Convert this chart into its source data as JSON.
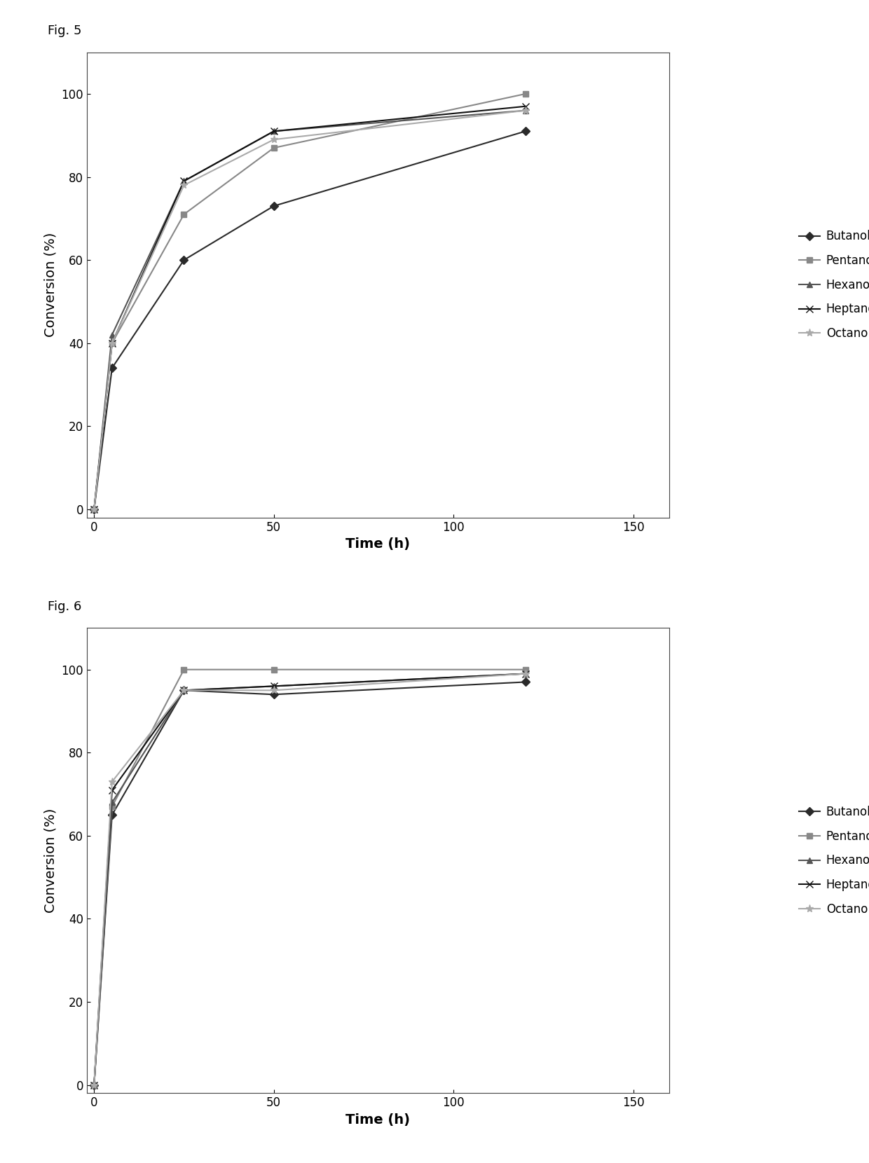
{
  "fig5_label": "Fig. 5",
  "fig6_label": "Fig. 6",
  "xlabel": "Time (h)",
  "ylabel": "Conversion (%)",
  "xlim": [
    -2,
    160
  ],
  "ylim": [
    -2,
    110
  ],
  "xticks": [
    0,
    50,
    100,
    150
  ],
  "yticks": [
    0,
    20,
    40,
    60,
    80,
    100
  ],
  "time_points": [
    0,
    5,
    25,
    50,
    120
  ],
  "series": [
    {
      "label": "Butanol",
      "marker": "D",
      "color": "#2a2a2a",
      "markersize": 6,
      "fig5_values": [
        0,
        34,
        60,
        73,
        91
      ],
      "fig6_values": [
        0,
        65,
        95,
        94,
        97
      ]
    },
    {
      "label": "Pentanol",
      "marker": "s",
      "color": "#888888",
      "markersize": 6,
      "fig5_values": [
        0,
        40,
        71,
        87,
        100
      ],
      "fig6_values": [
        0,
        67,
        100,
        100,
        100
      ]
    },
    {
      "label": "Hexanol",
      "marker": "^",
      "color": "#555555",
      "markersize": 6,
      "fig5_values": [
        0,
        42,
        79,
        91,
        96
      ],
      "fig6_values": [
        0,
        68,
        95,
        96,
        99
      ]
    },
    {
      "label": "Heptanol",
      "marker": "x",
      "color": "#111111",
      "markersize": 7,
      "fig5_values": [
        0,
        40,
        79,
        91,
        97
      ],
      "fig6_values": [
        0,
        71,
        95,
        96,
        99
      ]
    },
    {
      "label": "Octanol",
      "marker": "*",
      "color": "#aaaaaa",
      "markersize": 8,
      "fig5_values": [
        0,
        40,
        78,
        89,
        96
      ],
      "fig6_values": [
        0,
        73,
        95,
        95,
        99
      ]
    }
  ],
  "title_fontsize": 13,
  "label_fontsize": 14,
  "tick_fontsize": 12,
  "legend_fontsize": 12,
  "line_width": 1.5,
  "background_color": "#ffffff"
}
